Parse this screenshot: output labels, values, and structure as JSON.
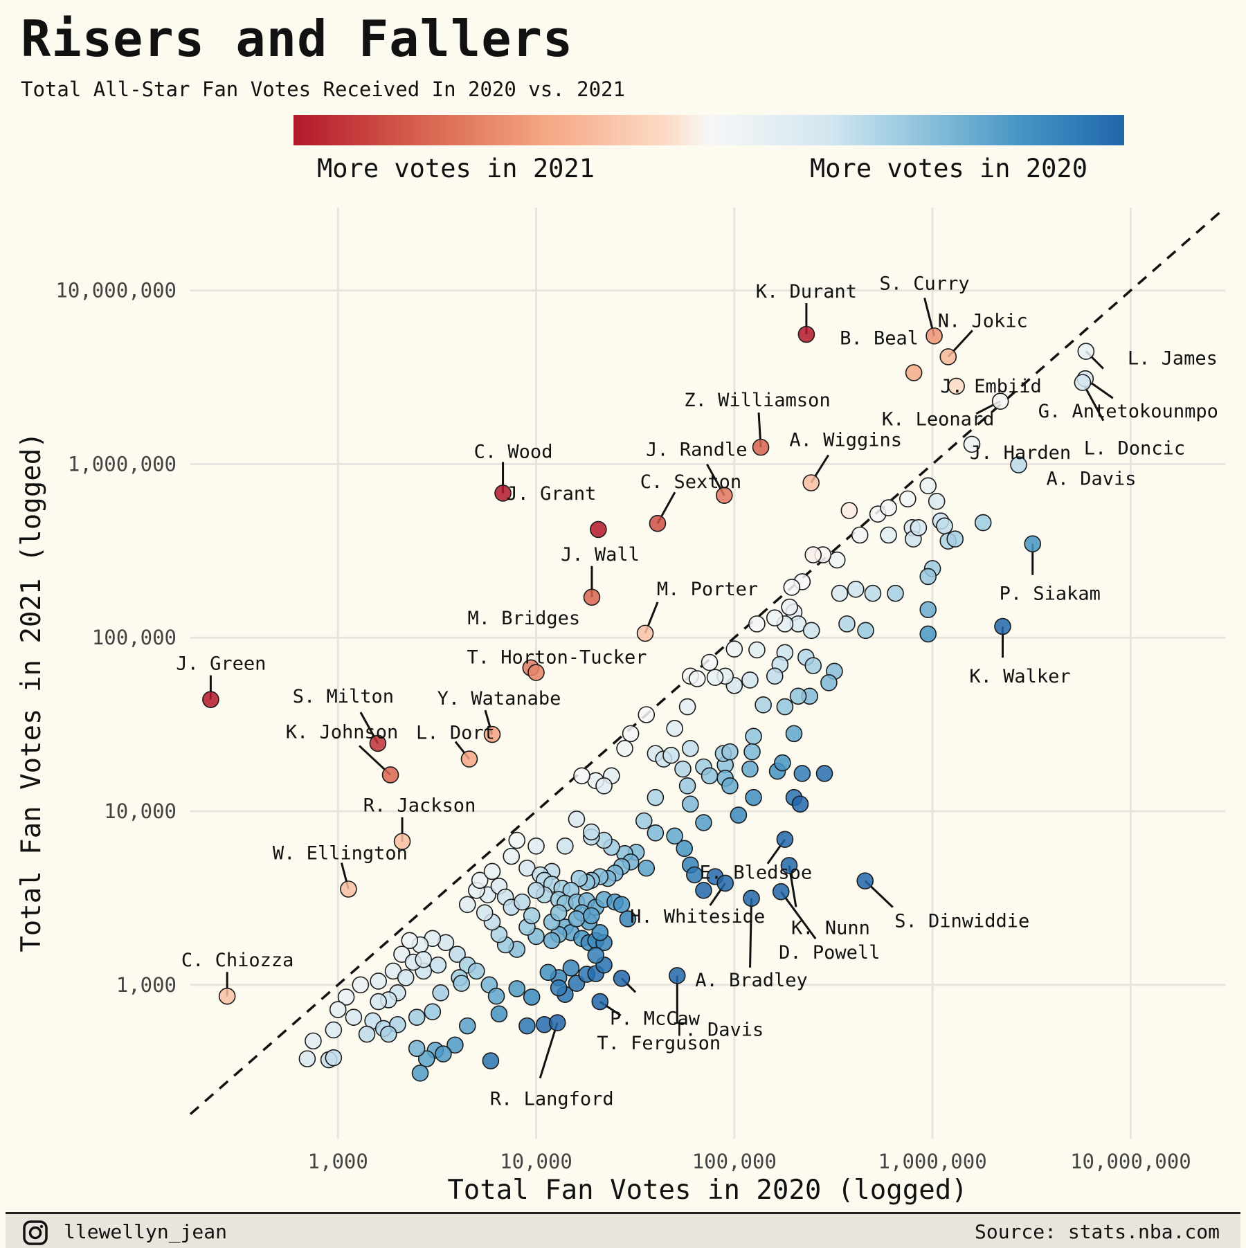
{
  "header": {
    "title": "Risers and Fallers",
    "subtitle": "Total All-Star Fan Votes Received In 2020 vs. 2021"
  },
  "legend": {
    "left_label": "More votes in 2021",
    "right_label": "More votes in 2020",
    "colors": [
      "#b2182b",
      "#d6604d",
      "#f4a582",
      "#fddbc7",
      "#f7f7f7",
      "#d1e5f0",
      "#92c5de",
      "#4393c3",
      "#2166ac"
    ]
  },
  "footer": {
    "handle": "llewellyn_jean",
    "source": "Source: stats.nba.com",
    "icon": "instagram-icon"
  },
  "chart_data": {
    "type": "scatter",
    "xlabel": "Total Fan Votes in 2020 (logged)",
    "ylabel": "Total Fan Votes in 2021 (logged)",
    "x_scale": "log",
    "y_scale": "log",
    "xlim": [
      180,
      30000000
    ],
    "ylim": [
      130,
      30000000
    ],
    "x_ticks": [
      1000,
      10000,
      100000,
      1000000,
      10000000
    ],
    "x_tick_labels": [
      "1,000",
      "10,000",
      "100,000",
      "1,000,000",
      "10,000,000"
    ],
    "y_ticks": [
      1000,
      10000,
      100000,
      1000000,
      10000000
    ],
    "y_tick_labels": [
      "1,000",
      "10,000",
      "100,000",
      "1,000,000",
      "10,000,000"
    ],
    "reference_line": "y = x",
    "grid": true,
    "labeled_points": [
      {
        "name": "K. Durant",
        "x": 231000,
        "y": 5590000
      },
      {
        "name": "S. Curry",
        "x": 1020000,
        "y": 5470000
      },
      {
        "name": "N. Jokic",
        "x": 1200000,
        "y": 4150000
      },
      {
        "name": "B. Beal",
        "x": 805000,
        "y": 3360000
      },
      {
        "name": "J. Embiid",
        "x": 1320000,
        "y": 2810000
      },
      {
        "name": "L. James",
        "x": 5950000,
        "y": 4460000
      },
      {
        "name": "G. Antetokounmpo",
        "x": 5900000,
        "y": 3100000
      },
      {
        "name": "K. Leonard",
        "x": 2200000,
        "y": 2300000
      },
      {
        "name": "J. Harden",
        "x": 1580000,
        "y": 1300000
      },
      {
        "name": "L. Doncic",
        "x": 5720000,
        "y": 2950000
      },
      {
        "name": "A. Davis",
        "x": 2720000,
        "y": 990000
      },
      {
        "name": "Z. Williamson",
        "x": 136000,
        "y": 1250000
      },
      {
        "name": "A. Wiggins",
        "x": 244000,
        "y": 780000
      },
      {
        "name": "J. Randle",
        "x": 89000,
        "y": 660000
      },
      {
        "name": "C. Sexton",
        "x": 41000,
        "y": 455000
      },
      {
        "name": "C. Wood",
        "x": 6800,
        "y": 680000
      },
      {
        "name": "J. Grant",
        "x": 20600,
        "y": 420000
      },
      {
        "name": "J. Wall",
        "x": 19100,
        "y": 171000
      },
      {
        "name": "M. Porter",
        "x": 35500,
        "y": 106000
      },
      {
        "name": "P. Siakam",
        "x": 3200000,
        "y": 347000
      },
      {
        "name": "M. Bridges",
        "x": 9400,
        "y": 67000
      },
      {
        "name": "T. Horton-Tucker",
        "x": 10000,
        "y": 63000
      },
      {
        "name": "K. Walker",
        "x": 2260000,
        "y": 116000
      },
      {
        "name": "J. Green",
        "x": 228,
        "y": 44000
      },
      {
        "name": "S. Milton",
        "x": 1590,
        "y": 24600
      },
      {
        "name": "Y. Watanabe",
        "x": 6000,
        "y": 27700
      },
      {
        "name": "K. Johnson",
        "x": 1840,
        "y": 16200
      },
      {
        "name": "L. Dort",
        "x": 4600,
        "y": 20000
      },
      {
        "name": "R. Jackson",
        "x": 2110,
        "y": 6700
      },
      {
        "name": "W. Ellington",
        "x": 1130,
        "y": 3560
      },
      {
        "name": "E. Bledsoe",
        "x": 180000,
        "y": 6880
      },
      {
        "name": "H. Whiteside",
        "x": 90000,
        "y": 3850
      },
      {
        "name": "A. Bradley",
        "x": 122000,
        "y": 3150
      },
      {
        "name": "K. Nunn",
        "x": 189000,
        "y": 4870
      },
      {
        "name": "D. Powell",
        "x": 172000,
        "y": 3440
      },
      {
        "name": "S. Dinwiddie",
        "x": 457000,
        "y": 3970
      },
      {
        "name": "C. Chiozza",
        "x": 276,
        "y": 860
      },
      {
        "name": "P. McCaw",
        "x": 27000,
        "y": 1090
      },
      {
        "name": "T. Davis",
        "x": 51500,
        "y": 1130
      },
      {
        "name": "T. Ferguson",
        "x": 21000,
        "y": 800
      },
      {
        "name": "R. Langford",
        "x": 12800,
        "y": 605
      }
    ],
    "other_points": [
      [
        380000,
        540000
      ],
      [
        530000,
        515000
      ],
      [
        600000,
        560000
      ],
      [
        430000,
        390000
      ],
      [
        750000,
        630000
      ],
      [
        950000,
        750000
      ],
      [
        1050000,
        610000
      ],
      [
        1100000,
        470000
      ],
      [
        1150000,
        440000
      ],
      [
        1200000,
        360000
      ],
      [
        1300000,
        370000
      ],
      [
        790000,
        430000
      ],
      [
        800000,
        370000
      ],
      [
        600000,
        390000
      ],
      [
        1800000,
        460000
      ],
      [
        1000000,
        250000
      ],
      [
        950000,
        225000
      ],
      [
        330000,
        280000
      ],
      [
        280000,
        300000
      ],
      [
        250000,
        300000
      ],
      [
        220000,
        210000
      ],
      [
        195000,
        195000
      ],
      [
        410000,
        190000
      ],
      [
        500000,
        180000
      ],
      [
        340000,
        180000
      ],
      [
        650000,
        180000
      ],
      [
        850000,
        430000
      ],
      [
        200000,
        140000
      ],
      [
        210000,
        120000
      ],
      [
        180000,
        120000
      ],
      [
        190000,
        150000
      ],
      [
        160000,
        130000
      ],
      [
        130000,
        120000
      ],
      [
        245000,
        110000
      ],
      [
        370000,
        120000
      ],
      [
        460000,
        110000
      ],
      [
        950000,
        145000
      ],
      [
        950000,
        105000
      ],
      [
        180000,
        82000
      ],
      [
        170000,
        70000
      ],
      [
        160000,
        60000
      ],
      [
        100000,
        86000
      ],
      [
        130000,
        85000
      ],
      [
        230000,
        77000
      ],
      [
        250000,
        69000
      ],
      [
        320000,
        64000
      ],
      [
        300000,
        55000
      ],
      [
        240000,
        46000
      ],
      [
        210000,
        46000
      ],
      [
        180000,
        40000
      ],
      [
        140000,
        41000
      ],
      [
        120000,
        57000
      ],
      [
        100000,
        53000
      ],
      [
        90000,
        60000
      ],
      [
        80000,
        59000
      ],
      [
        75000,
        72000
      ],
      [
        60000,
        60000
      ],
      [
        65000,
        58000
      ],
      [
        58000,
        40000
      ],
      [
        36000,
        36000
      ],
      [
        30000,
        28000
      ],
      [
        28000,
        23000
      ],
      [
        24000,
        16000
      ],
      [
        20000,
        15000
      ],
      [
        22000,
        14000
      ],
      [
        17000,
        16000
      ],
      [
        50000,
        30000
      ],
      [
        40000,
        21500
      ],
      [
        44000,
        20000
      ],
      [
        48000,
        21000
      ],
      [
        60000,
        23000
      ],
      [
        55000,
        17500
      ],
      [
        58000,
        14000
      ],
      [
        70000,
        18000
      ],
      [
        75000,
        16000
      ],
      [
        90000,
        18500
      ],
      [
        90000,
        15500
      ],
      [
        95000,
        14000
      ],
      [
        88000,
        21500
      ],
      [
        95000,
        22000
      ],
      [
        125000,
        27000
      ],
      [
        123000,
        22000
      ],
      [
        120000,
        17500
      ],
      [
        165000,
        17000
      ],
      [
        175000,
        19000
      ],
      [
        200000,
        28000
      ],
      [
        220000,
        16500
      ],
      [
        285000,
        16500
      ],
      [
        200000,
        12000
      ],
      [
        215000,
        11000
      ],
      [
        125000,
        12000
      ],
      [
        105000,
        9500
      ],
      [
        60000,
        11000
      ],
      [
        40000,
        12000
      ],
      [
        70000,
        8600
      ],
      [
        50000,
        7200
      ],
      [
        56000,
        6100
      ],
      [
        60000,
        4900
      ],
      [
        63000,
        4300
      ],
      [
        70000,
        3500
      ],
      [
        80000,
        4200
      ],
      [
        35000,
        8800
      ],
      [
        40000,
        7500
      ],
      [
        32000,
        5800
      ],
      [
        36000,
        4700
      ],
      [
        28000,
        5700
      ],
      [
        30000,
        5100
      ],
      [
        27000,
        4800
      ],
      [
        25000,
        4400
      ],
      [
        23000,
        4100
      ],
      [
        21000,
        4200
      ],
      [
        19000,
        4000
      ],
      [
        18000,
        3900
      ],
      [
        16500,
        4100
      ],
      [
        24000,
        6200
      ],
      [
        22000,
        6800
      ],
      [
        19000,
        7100
      ],
      [
        19000,
        7600
      ],
      [
        16000,
        9000
      ],
      [
        14000,
        6300
      ],
      [
        12000,
        4500
      ],
      [
        10000,
        6300
      ],
      [
        8000,
        6800
      ],
      [
        7500,
        5500
      ],
      [
        9000,
        4700
      ],
      [
        10500,
        4300
      ],
      [
        11000,
        4000
      ],
      [
        12000,
        3800
      ],
      [
        13500,
        3600
      ],
      [
        15000,
        3500
      ],
      [
        11000,
        3300
      ],
      [
        13000,
        3100
      ],
      [
        14000,
        2950
      ],
      [
        16000,
        3000
      ],
      [
        18000,
        3050
      ],
      [
        20000,
        2800
      ],
      [
        22000,
        3100
      ],
      [
        25000,
        3000
      ],
      [
        27000,
        2900
      ],
      [
        29000,
        2400
      ],
      [
        14000,
        2150
      ],
      [
        15000,
        2000
      ],
      [
        17000,
        1850
      ],
      [
        18500,
        1750
      ],
      [
        20000,
        1800
      ],
      [
        22000,
        1750
      ],
      [
        13000,
        1950
      ],
      [
        12000,
        1800
      ],
      [
        10000,
        1900
      ],
      [
        9000,
        2150
      ],
      [
        8000,
        1600
      ],
      [
        7000,
        1700
      ],
      [
        6500,
        1950
      ],
      [
        6000,
        2300
      ],
      [
        5500,
        2600
      ],
      [
        5700,
        3300
      ],
      [
        4500,
        2900
      ],
      [
        5000,
        3500
      ],
      [
        5200,
        4000
      ],
      [
        6000,
        4500
      ],
      [
        6500,
        3700
      ],
      [
        7000,
        3200
      ],
      [
        7500,
        2800
      ],
      [
        8500,
        3000
      ],
      [
        10000,
        3500
      ],
      [
        9500,
        2500
      ],
      [
        3500,
        1750
      ],
      [
        3000,
        1850
      ],
      [
        2600,
        1700
      ],
      [
        2300,
        1800
      ],
      [
        2100,
        1500
      ],
      [
        1900,
        1200
      ],
      [
        1600,
        1050
      ],
      [
        1300,
        1000
      ],
      [
        1100,
        850
      ],
      [
        1000,
        720
      ],
      [
        950,
        550
      ],
      [
        1200,
        650
      ],
      [
        1500,
        620
      ],
      [
        1700,
        560
      ],
      [
        2000,
        590
      ],
      [
        2500,
        650
      ],
      [
        3000,
        700
      ],
      [
        3300,
        900
      ],
      [
        3200,
        1300
      ],
      [
        2700,
        1200
      ],
      [
        2400,
        1350
      ],
      [
        2200,
        1100
      ],
      [
        2000,
        900
      ],
      [
        1800,
        820
      ],
      [
        1600,
        800
      ],
      [
        2700,
        1400
      ],
      [
        4000,
        1500
      ],
      [
        4500,
        1300
      ],
      [
        5000,
        1200
      ],
      [
        4100,
        1100
      ],
      [
        5800,
        1000
      ],
      [
        6300,
        860
      ],
      [
        8000,
        950
      ],
      [
        9500,
        850
      ],
      [
        6500,
        680
      ],
      [
        9000,
        580
      ],
      [
        11000,
        590
      ],
      [
        4500,
        580
      ],
      [
        3900,
        450
      ],
      [
        3100,
        420
      ],
      [
        2800,
        375
      ],
      [
        2600,
        310
      ],
      [
        1400,
        520
      ],
      [
        1800,
        520
      ],
      [
        2500,
        430
      ],
      [
        750,
        475
      ],
      [
        900,
        370
      ],
      [
        950,
        380
      ],
      [
        3400,
        400
      ],
      [
        700,
        375
      ],
      [
        5900,
        365
      ],
      [
        4200,
        1020
      ],
      [
        16000,
        1020
      ],
      [
        15000,
        1250
      ],
      [
        13000,
        1100
      ],
      [
        11500,
        1180
      ],
      [
        14000,
        880
      ],
      [
        13000,
        960
      ],
      [
        18000,
        1150
      ],
      [
        20000,
        1160
      ],
      [
        22000,
        1300
      ],
      [
        20000,
        1480
      ],
      [
        21000,
        2000
      ],
      [
        18500,
        2300
      ],
      [
        17000,
        2600
      ],
      [
        16000,
        2400
      ],
      [
        19000,
        2500
      ],
      [
        12000,
        2300
      ],
      [
        13000,
        2600
      ]
    ]
  }
}
